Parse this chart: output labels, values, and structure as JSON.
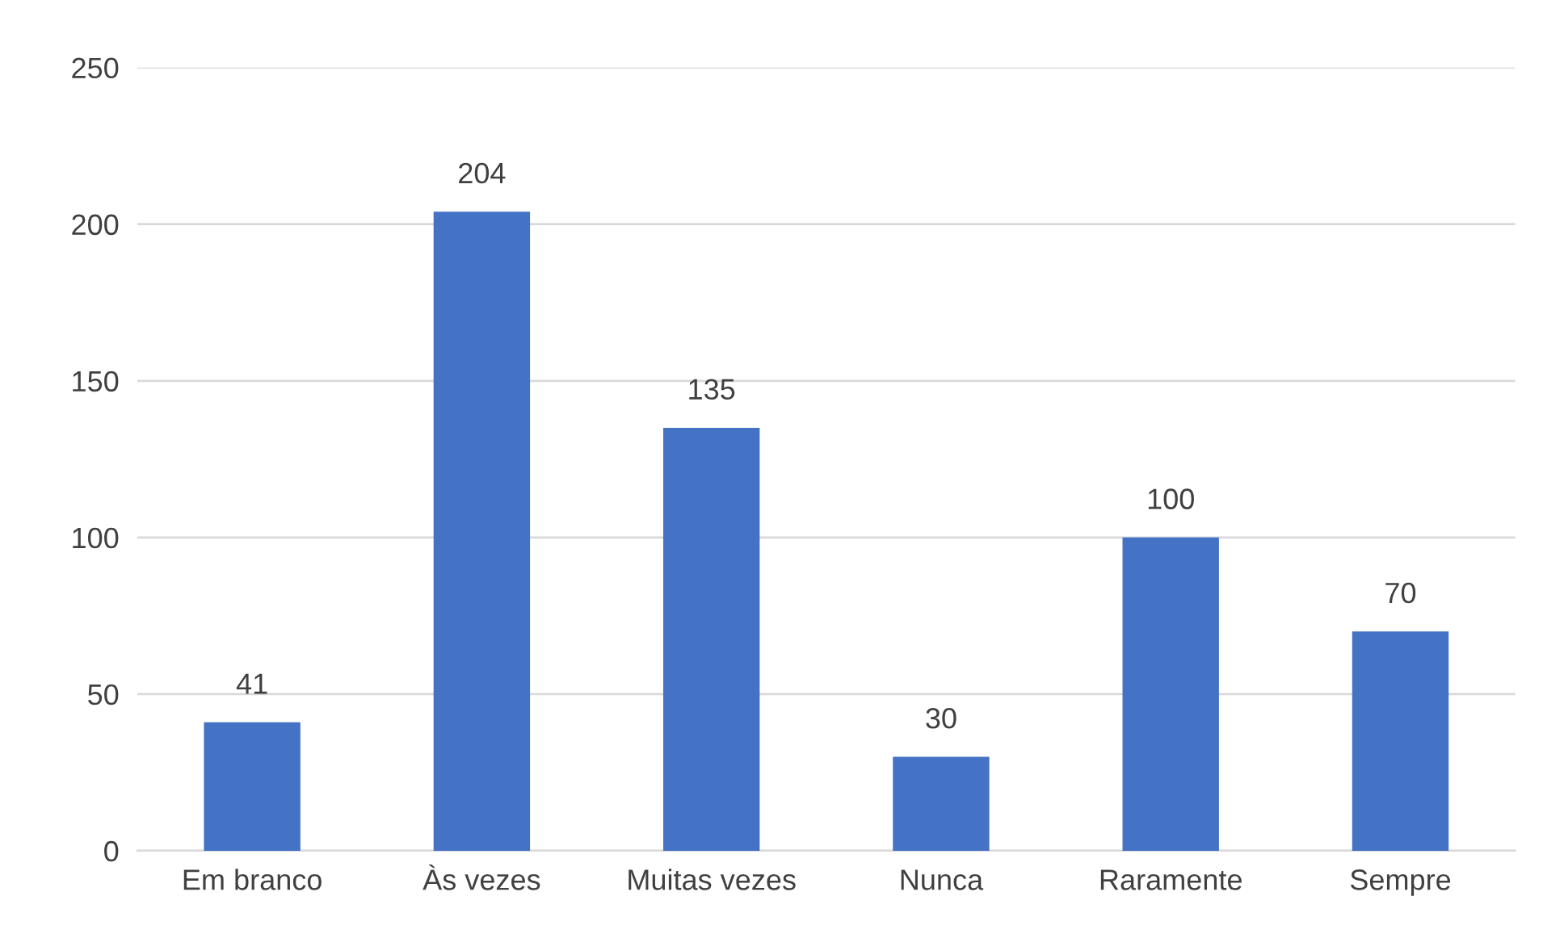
{
  "chart_data": {
    "type": "bar",
    "categories": [
      "Em branco",
      "Às vezes",
      "Muitas vezes",
      "Nunca",
      "Raramente",
      "Sempre"
    ],
    "values": [
      41,
      204,
      135,
      30,
      100,
      70
    ],
    "color": "#4472c4",
    "ylim": [
      0,
      250
    ],
    "yticks": [
      0,
      50,
      100,
      150,
      200,
      250
    ],
    "grid": "y",
    "data_labels": true,
    "legend": false
  }
}
